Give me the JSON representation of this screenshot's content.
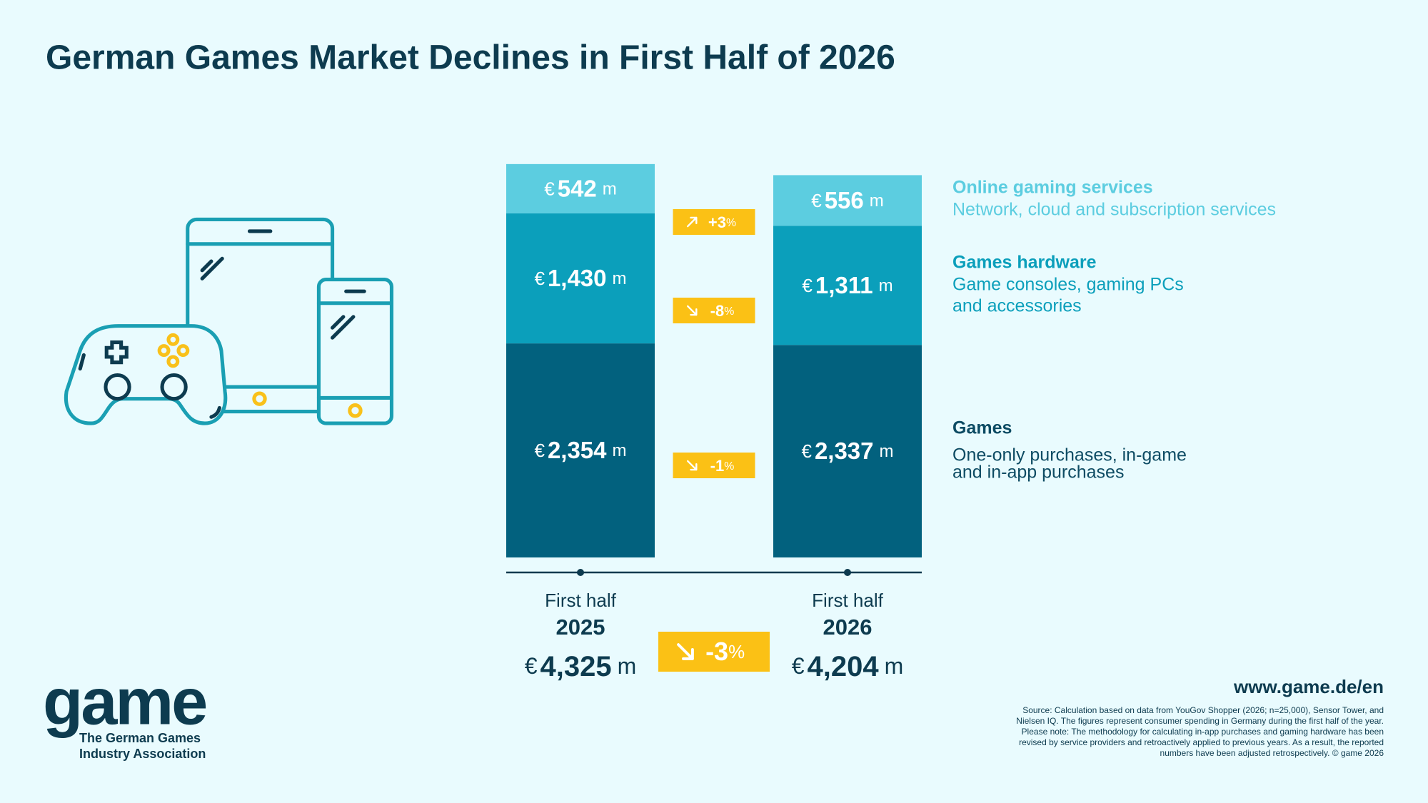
{
  "chart_data": {
    "type": "stacked-bar",
    "title": "German Games Market Declines in First Half of 2026",
    "category_caption": "First half",
    "categories": [
      "2025",
      "2026"
    ],
    "currency": "€",
    "unit": "m",
    "percent_sign": "%",
    "series": [
      {
        "name": "Games",
        "description": [
          "One-only purchases, in-game",
          "and in-app purchases"
        ],
        "color": "#02617e",
        "name_color": "#0d4b63",
        "values": [
          2354,
          2337
        ],
        "value_labels": [
          "2,354",
          "2,337"
        ],
        "change": -1,
        "change_label": "-1"
      },
      {
        "name": "Games hardware",
        "description": [
          "Game consoles, gaming PCs",
          "and accessories"
        ],
        "color": "#0b9fbb",
        "name_color": "#0b9fbb",
        "values": [
          1430,
          1311
        ],
        "value_labels": [
          "1,430",
          "1,311"
        ],
        "change": -8,
        "change_label": "-8"
      },
      {
        "name": "Online gaming services",
        "description": [
          "Network, cloud and subscription services"
        ],
        "color": "#5ccde0",
        "name_color": "#5ccde0",
        "values": [
          542,
          556
        ],
        "value_labels": [
          "542",
          "556"
        ],
        "change": 3,
        "change_label": "+3"
      }
    ],
    "totals": [
      4325,
      4204
    ],
    "total_labels": [
      "4,325",
      "4,204"
    ],
    "total_change": -3,
    "total_change_label": "-3",
    "badge_color": "#fbc115"
  },
  "website": "www.game.de/en",
  "source": [
    "Source: Calculation based on data from YouGov Shopper (2026; n=25,000), Sensor Tower, and",
    "Nielsen IQ. The figures represent consumer spending in Germany during the first half of the year.",
    "Please note: The methodology for calculating in-app purchases and gaming hardware has been",
    "revised by service providers and retroactively applied to previous years. As a result, the reported",
    "numbers have been adjusted retrospectively. © game 2026"
  ],
  "logo": {
    "wordmark": "game",
    "subtitle": [
      "The German Games",
      "Industry Association"
    ]
  }
}
